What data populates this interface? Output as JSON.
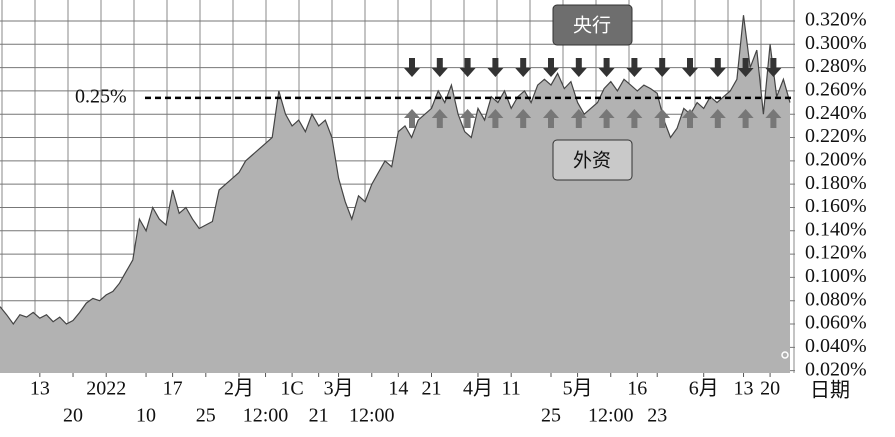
{
  "chart_data": {
    "type": "area",
    "values": [
      0.075,
      0.068,
      0.06,
      0.068,
      0.066,
      0.07,
      0.065,
      0.068,
      0.062,
      0.066,
      0.06,
      0.063,
      0.07,
      0.078,
      0.082,
      0.08,
      0.085,
      0.088,
      0.095,
      0.105,
      0.115,
      0.15,
      0.14,
      0.16,
      0.15,
      0.145,
      0.175,
      0.155,
      0.16,
      0.15,
      0.142,
      0.145,
      0.148,
      0.175,
      0.18,
      0.185,
      0.19,
      0.2,
      0.205,
      0.21,
      0.215,
      0.22,
      0.26,
      0.24,
      0.23,
      0.235,
      0.225,
      0.24,
      0.23,
      0.235,
      0.22,
      0.185,
      0.165,
      0.15,
      0.17,
      0.165,
      0.18,
      0.19,
      0.2,
      0.195,
      0.225,
      0.23,
      0.22,
      0.235,
      0.24,
      0.245,
      0.26,
      0.25,
      0.265,
      0.24,
      0.225,
      0.22,
      0.245,
      0.235,
      0.255,
      0.25,
      0.26,
      0.245,
      0.255,
      0.26,
      0.25,
      0.265,
      0.27,
      0.265,
      0.275,
      0.262,
      0.268,
      0.25,
      0.24,
      0.245,
      0.25,
      0.262,
      0.268,
      0.26,
      0.27,
      0.265,
      0.26,
      0.265,
      0.262,
      0.258,
      0.235,
      0.22,
      0.228,
      0.245,
      0.24,
      0.25,
      0.245,
      0.255,
      0.25,
      0.255,
      0.26,
      0.27,
      0.325,
      0.28,
      0.295,
      0.24,
      0.3,
      0.255,
      0.27,
      0.25
    ],
    "color": "#b2b2b2",
    "line_color": "#444444",
    "xlim": [
      0,
      119
    ],
    "xticks": [
      {
        "value": 6,
        "label": "13"
      },
      {
        "value": 16,
        "label": "2022"
      },
      {
        "value": 26,
        "label": "17"
      },
      {
        "value": 36,
        "label": "2月"
      },
      {
        "value": 44,
        "label": "1C"
      },
      {
        "value": 51,
        "label": "3月"
      },
      {
        "value": 60,
        "label": "14"
      },
      {
        "value": 65,
        "label": "21"
      },
      {
        "value": 72,
        "label": "4月"
      },
      {
        "value": 77,
        "label": "11"
      },
      {
        "value": 87,
        "label": "5月"
      },
      {
        "value": 96,
        "label": "16"
      },
      {
        "value": 106,
        "label": "6月"
      },
      {
        "value": 112,
        "label": "13"
      },
      {
        "value": 116,
        "label": "20"
      }
    ],
    "xticks_row2": [
      {
        "value": 11,
        "label": "20"
      },
      {
        "value": 22,
        "label": "10"
      },
      {
        "value": 31,
        "label": "25"
      },
      {
        "value": 40,
        "label": "12:00"
      },
      {
        "value": 48,
        "label": "21"
      },
      {
        "value": 56,
        "label": "12:00"
      },
      {
        "value": 83,
        "label": "25"
      },
      {
        "value": 92,
        "label": "12:00"
      },
      {
        "value": 99,
        "label": "23"
      }
    ],
    "xlabel": "日期",
    "ylim": [
      0.018,
      0.338
    ],
    "yticks": [
      {
        "value": 0.02,
        "label": "0.020%"
      },
      {
        "value": 0.04,
        "label": "0.040%"
      },
      {
        "value": 0.06,
        "label": "0.060%"
      },
      {
        "value": 0.08,
        "label": "0.080%"
      },
      {
        "value": 0.1,
        "label": "0.100%"
      },
      {
        "value": 0.12,
        "label": "0.120%"
      },
      {
        "value": 0.14,
        "label": "0.140%"
      },
      {
        "value": 0.16,
        "label": "0.160%"
      },
      {
        "value": 0.18,
        "label": "0.180%"
      },
      {
        "value": 0.2,
        "label": "0.200%"
      },
      {
        "value": 0.22,
        "label": "0.220%"
      },
      {
        "value": 0.24,
        "label": "0.240%"
      },
      {
        "value": 0.26,
        "label": "0.260%"
      },
      {
        "value": 0.28,
        "label": "0.280%"
      },
      {
        "value": 0.3,
        "label": "0.300%"
      },
      {
        "value": 0.32,
        "label": "0.320%"
      }
    ],
    "grid": true,
    "reference_line": {
      "value": 0.254,
      "label": "0.25%"
    },
    "annotations": [
      {
        "text": "央行"
      },
      {
        "text": "外资"
      }
    ]
  }
}
